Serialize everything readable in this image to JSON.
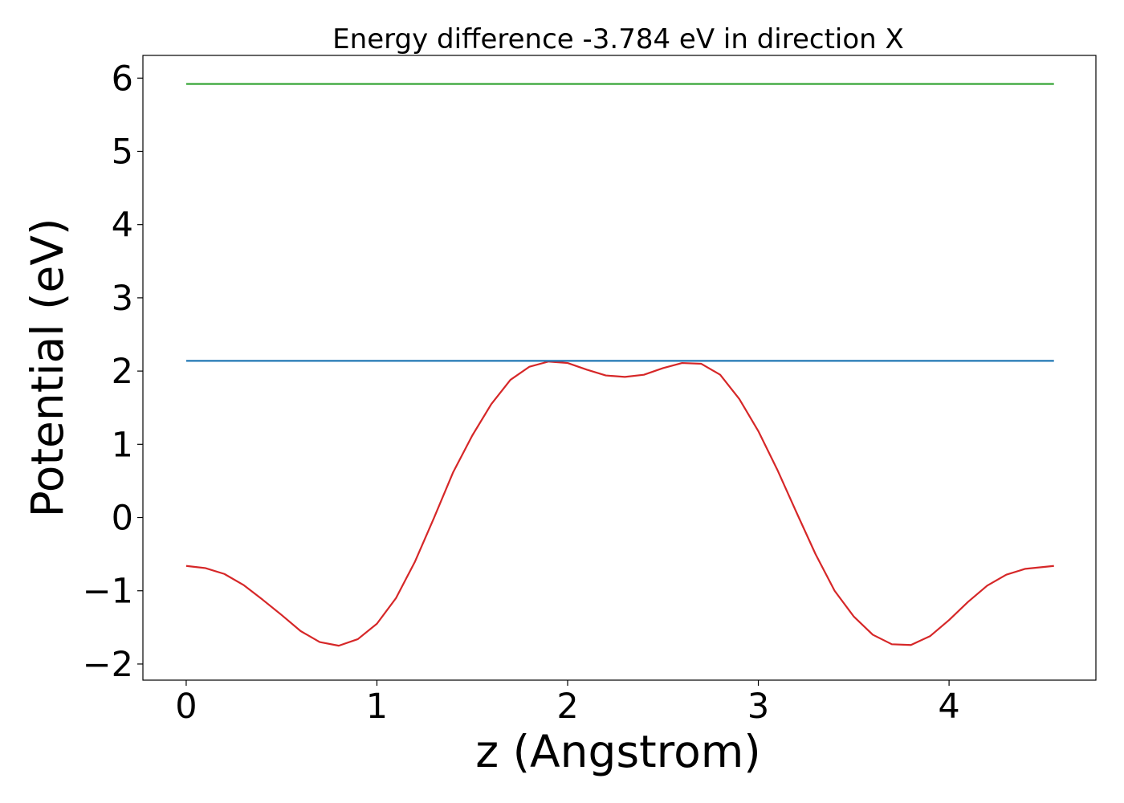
{
  "chart_data": {
    "type": "line",
    "title": "Energy difference -3.784 eV in direction X",
    "xlabel": "z (Angstrom)",
    "ylabel": "Potential (eV)",
    "xlim": [
      -0.227,
      4.77
    ],
    "ylim": [
      -2.22,
      6.31
    ],
    "xticks": [
      0,
      1,
      2,
      3,
      4
    ],
    "xtick_labels": [
      "0",
      "1",
      "2",
      "3",
      "4"
    ],
    "yticks": [
      -2,
      -1,
      0,
      1,
      2,
      3,
      4,
      5,
      6
    ],
    "ytick_labels": [
      "−2",
      "−1",
      "0",
      "1",
      "2",
      "3",
      "4",
      "5",
      "6"
    ],
    "grid": false,
    "legend": "none",
    "series": [
      {
        "color": "#d62728",
        "x": [
          0,
          0.1,
          0.2,
          0.3,
          0.4,
          0.5,
          0.6,
          0.7,
          0.8,
          0.9,
          1.0,
          1.1,
          1.2,
          1.3,
          1.4,
          1.5,
          1.6,
          1.7,
          1.8,
          1.9,
          2.0,
          2.1,
          2.2,
          2.3,
          2.4,
          2.5,
          2.6,
          2.7,
          2.8,
          2.9,
          3.0,
          3.1,
          3.2,
          3.3,
          3.4,
          3.5,
          3.6,
          3.7,
          3.8,
          3.9,
          4.0,
          4.1,
          4.2,
          4.3,
          4.4,
          4.55
        ],
        "y": [
          -0.66,
          -0.69,
          -0.77,
          -0.92,
          -1.12,
          -1.33,
          -1.55,
          -1.7,
          -1.75,
          -1.66,
          -1.45,
          -1.1,
          -0.6,
          0.0,
          0.62,
          1.12,
          1.55,
          1.88,
          2.06,
          2.13,
          2.11,
          2.02,
          1.94,
          1.92,
          1.95,
          2.04,
          2.11,
          2.1,
          1.95,
          1.62,
          1.18,
          0.65,
          0.07,
          -0.5,
          -1.0,
          -1.35,
          -1.6,
          -1.73,
          -1.74,
          -1.62,
          -1.4,
          -1.15,
          -0.93,
          -0.78,
          -0.7,
          -0.66
        ]
      },
      {
        "color": "#1f77b4",
        "x": [
          0,
          4.55
        ],
        "y": [
          2.14,
          2.14
        ]
      },
      {
        "color": "#2ca02c",
        "x": [
          0,
          4.55
        ],
        "y": [
          5.92,
          5.92
        ]
      }
    ]
  }
}
